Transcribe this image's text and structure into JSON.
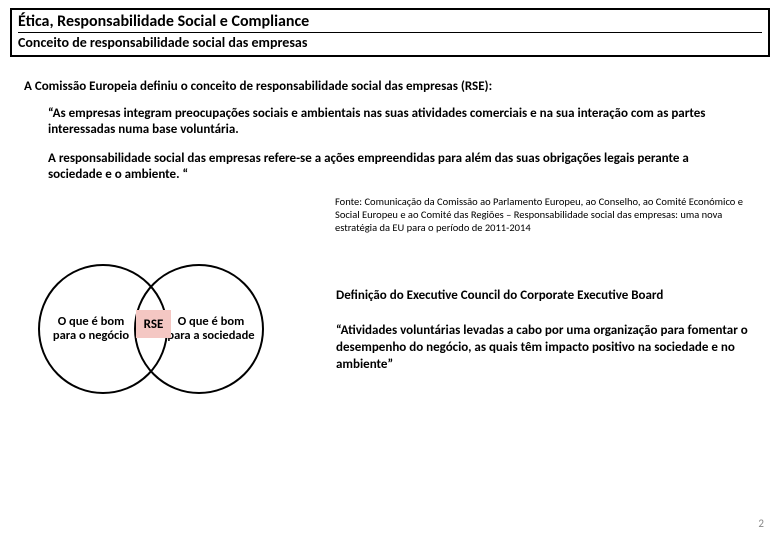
{
  "header": {
    "title": "Ética, Responsabilidade Social e Compliance",
    "subtitle": "Conceito de responsabilidade social das empresas"
  },
  "intro": "A Comissão Europeia definiu o conceito de responsabilidade social das empresas (RSE):",
  "quote1": "“As empresas integram preocupações sociais e ambientais nas suas atividades comerciais e na sua interação com as partes interessadas numa base voluntária.",
  "quote2": "A responsabilidade social das empresas refere-se a ações empreendidas para além das suas obrigações legais perante a sociedade e o ambiente. “",
  "source": "Fonte: Comunicação da Comissão ao Parlamento Europeu, ao Conselho, ao Comité Económico e Social Europeu e ao Comité das Regiões – Responsabilidade social das empresas: uma nova estratégia da EU para o período de 2011-2014",
  "venn": {
    "left_label": "O que é bom para o negócio",
    "right_label": "O que é bom para a sociedade",
    "center_label": "RSE",
    "circle_border": "#000000",
    "rse_bg": "#f4c7c3"
  },
  "definition": {
    "heading": "Definição do Executive Council do Corporate Executive Board",
    "body": "“Atividades voluntárias levadas a cabo por uma organização para fomentar o desempenho do negócio, as quais têm impacto positivo na sociedade e no ambiente”"
  },
  "page_number": "2"
}
